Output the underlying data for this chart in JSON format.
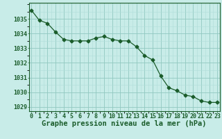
{
  "x": [
    0,
    1,
    2,
    3,
    4,
    5,
    6,
    7,
    8,
    9,
    10,
    11,
    12,
    13,
    14,
    15,
    16,
    17,
    18,
    19,
    20,
    21,
    22,
    23
  ],
  "y": [
    1035.6,
    1034.9,
    1034.7,
    1034.1,
    1033.6,
    1033.5,
    1033.5,
    1033.5,
    1033.7,
    1033.8,
    1033.6,
    1033.5,
    1033.5,
    1033.1,
    1032.5,
    1032.2,
    1031.1,
    1030.3,
    1030.1,
    1029.8,
    1029.7,
    1029.4,
    1029.3,
    1029.3
  ],
  "line_color": "#1a5c2a",
  "marker": "D",
  "marker_size": 2.5,
  "bg_color": "#c8ece8",
  "grid_color_minor": "#b0ddd8",
  "grid_color_major": "#90c8c0",
  "xlabel": "Graphe pression niveau de la mer (hPa)",
  "xlabel_color": "#1a5c2a",
  "ylabel_ticks": [
    1029,
    1030,
    1031,
    1032,
    1033,
    1034,
    1035
  ],
  "ylim": [
    1028.7,
    1036.1
  ],
  "xlim": [
    -0.3,
    23.3
  ],
  "tick_label_color": "#1a5c2a",
  "axis_color": "#1a5c2a",
  "xlabel_fontsize": 7.5,
  "tick_fontsize": 6.0
}
